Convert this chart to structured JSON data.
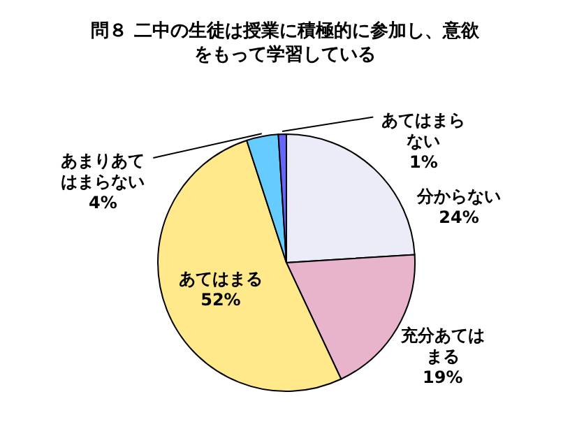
{
  "chart_data": {
    "type": "pie",
    "title": "問８ 二中の生徒は授業に積極的に参加し、意欲をもって学習している",
    "categories": [
      "分からない",
      "充分あてはまる",
      "あてはまる",
      "あまりあてはまらない",
      "あてはまらない"
    ],
    "values": [
      24,
      19,
      52,
      4,
      1
    ],
    "value_labels": [
      "24%",
      "19%",
      "52%",
      "4%",
      "1%"
    ],
    "colors": [
      "#ececf8",
      "#e8b4cc",
      "#ffe98a",
      "#66ccff",
      "#6666ff"
    ]
  }
}
